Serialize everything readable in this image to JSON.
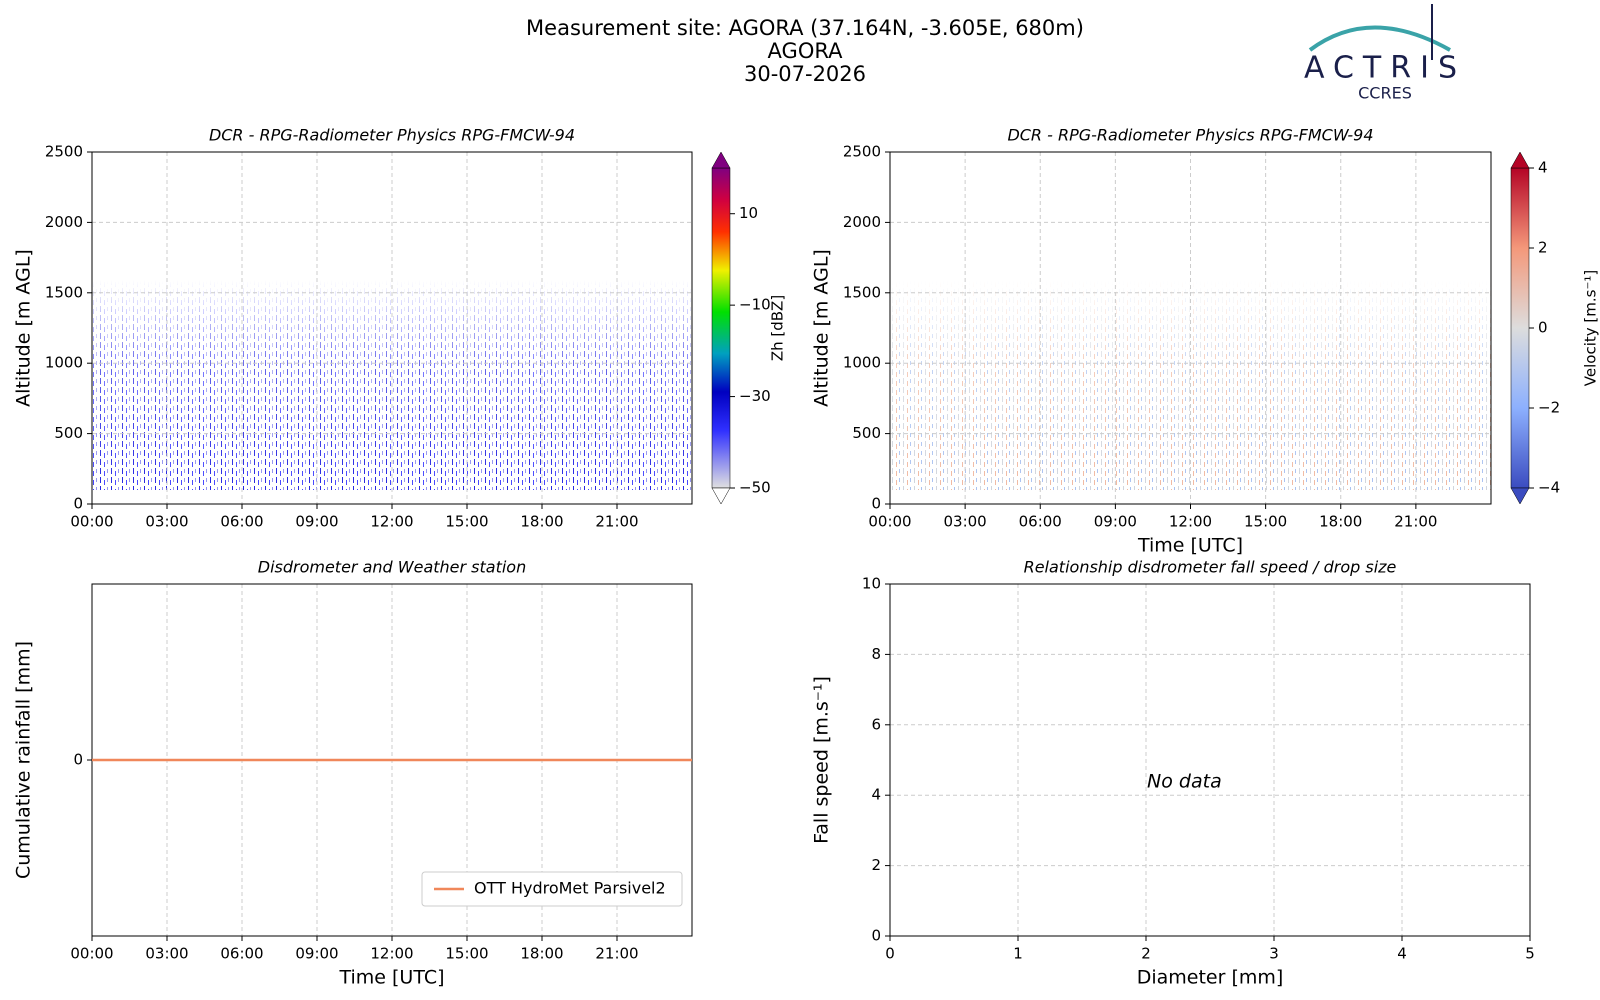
{
  "header": {
    "title_lines": [
      "Measurement site: AGORA (37.164N, -3.605E, 680m)",
      "AGORA",
      "30-07-2026"
    ],
    "logo": {
      "name": "ACTRIS",
      "sub": "CCRES"
    }
  },
  "chart_data": [
    {
      "type": "heatmap",
      "title": "DCR - RPG-Radiometer Physics RPG-FMCW-94",
      "ylabel": "Altitude [m AGL]",
      "xlim": [
        0,
        24
      ],
      "xticks": [
        {
          "value": 0,
          "label": "00:00"
        },
        {
          "value": 3,
          "label": "03:00"
        },
        {
          "value": 6,
          "label": "06:00"
        },
        {
          "value": 9,
          "label": "09:00"
        },
        {
          "value": 12,
          "label": "12:00"
        },
        {
          "value": 15,
          "label": "15:00"
        },
        {
          "value": 18,
          "label": "18:00"
        },
        {
          "value": 21,
          "label": "21:00"
        }
      ],
      "ylim": [
        0,
        2500
      ],
      "yticks": [
        0,
        500,
        1000,
        1500,
        2000,
        2500
      ],
      "grid": true,
      "colorbar": {
        "label": "Zh [dBZ]",
        "lim": [
          -50,
          20
        ],
        "ticks": [
          {
            "value": -50,
            "label": "−50"
          },
          {
            "value": -30,
            "label": "−30"
          },
          {
            "value": -10,
            "label": "−10"
          },
          10
        ]
      }
    },
    {
      "type": "heatmap",
      "title": "DCR - RPG-Radiometer Physics RPG-FMCW-94",
      "ylabel": "Altitude [m AGL]",
      "xlabel": "Time [UTC]",
      "xlim": [
        0,
        24
      ],
      "xticks": [
        {
          "value": 0,
          "label": "00:00"
        },
        {
          "value": 3,
          "label": "03:00"
        },
        {
          "value": 6,
          "label": "06:00"
        },
        {
          "value": 9,
          "label": "09:00"
        },
        {
          "value": 12,
          "label": "12:00"
        },
        {
          "value": 15,
          "label": "15:00"
        },
        {
          "value": 18,
          "label": "18:00"
        },
        {
          "value": 21,
          "label": "21:00"
        }
      ],
      "ylim": [
        0,
        2500
      ],
      "yticks": [
        0,
        500,
        1000,
        1500,
        2000,
        2500
      ],
      "grid": true,
      "colorbar": {
        "label": "Velocity [m.s⁻¹]",
        "lim": [
          -4,
          4
        ],
        "ticks": [
          {
            "value": -4,
            "label": "−4"
          },
          {
            "value": -2,
            "label": "−2"
          },
          0,
          2,
          4
        ]
      }
    },
    {
      "type": "line",
      "title": "Disdrometer and Weather station",
      "ylabel": "Cumulative rainfall [mm]",
      "xlabel": "Time [UTC]",
      "xlim": [
        0,
        24
      ],
      "xticks": [
        {
          "value": 0,
          "label": "00:00"
        },
        {
          "value": 3,
          "label": "03:00"
        },
        {
          "value": 6,
          "label": "06:00"
        },
        {
          "value": 9,
          "label": "09:00"
        },
        {
          "value": 12,
          "label": "12:00"
        },
        {
          "value": 15,
          "label": "15:00"
        },
        {
          "value": 18,
          "label": "18:00"
        },
        {
          "value": 21,
          "label": "21:00"
        }
      ],
      "ylim": [
        -0.055,
        0.055
      ],
      "yticks": [
        0
      ],
      "grid": true,
      "legend": "lower right",
      "x": [
        0,
        24
      ],
      "series": [
        {
          "name": "OTT HydroMet Parsivel2",
          "color": "#f0875a",
          "values": [
            0,
            0
          ]
        }
      ]
    },
    {
      "type": "scatter",
      "title": "Relationship disdrometer fall speed / drop size",
      "ylabel": "Fall speed [m.s⁻¹]",
      "xlabel": "Diameter [mm]",
      "xlim": [
        0,
        5
      ],
      "xticks": [
        0,
        1,
        2,
        3,
        4,
        5
      ],
      "ylim": [
        0,
        10
      ],
      "yticks": [
        0,
        2,
        4,
        6,
        8,
        10
      ],
      "grid": true,
      "annotation": "No data",
      "x": [],
      "values": []
    }
  ]
}
